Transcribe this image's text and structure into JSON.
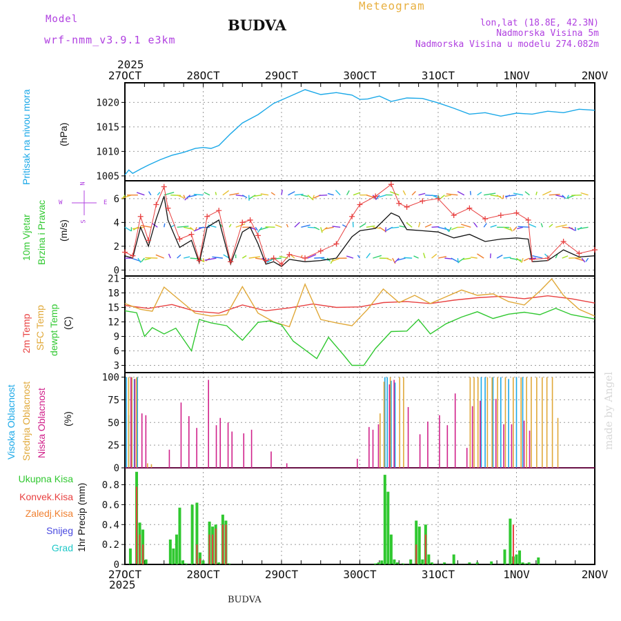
{
  "header": {
    "model_label": "Model",
    "model_name": "wrf-nmm_v3.9.1 e3km",
    "location": "BUDVA",
    "chart_title": "Meteogram",
    "coords": "lon,lat (18.8E, 42.3N)",
    "elevation": "Nadmorska Visina 5m",
    "model_elevation": "Nadmorska Visina u modelu 274.082m",
    "footer_location": "BUDVA",
    "credit": "made by Angel",
    "colors": {
      "purple": "#b040e0",
      "gold": "#e8b040",
      "black": "#111111"
    }
  },
  "time_axis": {
    "year": "2025",
    "labels": [
      "27OCT",
      "28OCT",
      "29OCT",
      "30OCT",
      "31OCT",
      "1NOV",
      "2NOV"
    ]
  },
  "chart_data": [
    {
      "id": "pressure",
      "type": "line",
      "title": "Pritisak na nivou mora",
      "ylabel": "(hPa)",
      "ylim": [
        1004,
        1024
      ],
      "yticks": [
        1005,
        1010,
        1015,
        1020
      ],
      "xlim": [
        0,
        6
      ],
      "color": "#1aa8e8",
      "x": [
        0,
        0.05,
        0.1,
        0.2,
        0.3,
        0.45,
        0.6,
        0.75,
        0.9,
        1.0,
        1.1,
        1.2,
        1.35,
        1.5,
        1.7,
        1.9,
        2.1,
        2.3,
        2.5,
        2.7,
        2.9,
        3.0,
        3.1,
        3.25,
        3.4,
        3.6,
        3.8,
        4.0,
        4.2,
        4.4,
        4.6,
        4.8,
        5.0,
        5.2,
        5.4,
        5.6,
        5.8,
        6.0
      ],
      "values": [
        1005.2,
        1006.2,
        1005.5,
        1006.4,
        1007.2,
        1008.3,
        1009.2,
        1009.8,
        1010.6,
        1010.8,
        1010.6,
        1011.2,
        1013.6,
        1015.8,
        1017.5,
        1019.8,
        1021.2,
        1022.6,
        1021.6,
        1022.0,
        1021.5,
        1020.6,
        1020.7,
        1021.3,
        1020.2,
        1020.9,
        1020.8,
        1019.9,
        1018.8,
        1017.6,
        1017.9,
        1017.2,
        1017.8,
        1017.6,
        1018.2,
        1017.9,
        1018.6,
        1018.4
      ]
    },
    {
      "id": "wind",
      "type": "line",
      "title": "10m Vjetar Brzina i Pravac",
      "ylabel": "(m/s)",
      "ylim": [
        -0.5,
        7.5
      ],
      "yticks": [
        0,
        2,
        4,
        6
      ],
      "xlim": [
        0,
        6
      ],
      "compass": {
        "west": "W",
        "east": "E",
        "north": "N",
        "south": "S"
      },
      "series": [
        {
          "name": "speed",
          "color": "#111111",
          "x": [
            0,
            0.1,
            0.2,
            0.3,
            0.4,
            0.5,
            0.55,
            0.7,
            0.85,
            0.95,
            1.05,
            1.2,
            1.35,
            1.5,
            1.6,
            1.7,
            1.8,
            1.9,
            2.0,
            2.1,
            2.3,
            2.5,
            2.7,
            2.9,
            3.0,
            3.2,
            3.4,
            3.5,
            3.6,
            3.8,
            4.0,
            4.2,
            4.4,
            4.6,
            4.8,
            5.0,
            5.15,
            5.2,
            5.4,
            5.6,
            5.8,
            6.0
          ],
          "values": [
            1.2,
            1.0,
            3.6,
            2.0,
            4.3,
            6.2,
            4.2,
            1.9,
            2.5,
            0.6,
            3.6,
            4.2,
            0.5,
            3.2,
            3.6,
            2.2,
            0.5,
            0.7,
            0.3,
            0.9,
            0.7,
            0.8,
            1.0,
            2.8,
            3.3,
            3.5,
            4.8,
            4.5,
            3.4,
            3.3,
            3.2,
            2.7,
            3.0,
            2.4,
            2.6,
            2.7,
            2.6,
            0.7,
            0.8,
            1.7,
            1.1,
            1.2
          ]
        },
        {
          "name": "gust",
          "color": "#e84040",
          "x": [
            0,
            0.1,
            0.2,
            0.3,
            0.4,
            0.5,
            0.55,
            0.7,
            0.85,
            0.95,
            1.05,
            1.2,
            1.35,
            1.5,
            1.6,
            1.7,
            1.8,
            1.9,
            2.0,
            2.1,
            2.3,
            2.5,
            2.7,
            2.9,
            3.0,
            3.2,
            3.4,
            3.5,
            3.6,
            3.8,
            4.0,
            4.2,
            4.4,
            4.6,
            4.8,
            5.0,
            5.15,
            5.2,
            5.4,
            5.6,
            5.8,
            6.0
          ],
          "values": [
            1.5,
            1.2,
            4.5,
            2.5,
            5.5,
            7.0,
            5.2,
            2.6,
            3.0,
            0.8,
            4.5,
            5.0,
            0.7,
            4.0,
            4.2,
            2.9,
            0.8,
            1.0,
            0.5,
            1.3,
            1.0,
            1.6,
            2.2,
            4.5,
            5.5,
            6.2,
            7.2,
            5.6,
            5.3,
            5.8,
            6.0,
            4.6,
            5.2,
            4.3,
            4.6,
            4.8,
            4.2,
            0.9,
            1.0,
            2.4,
            1.4,
            1.7
          ]
        }
      ],
      "arrow_rows": [
        1,
        3.6,
        6.3
      ]
    },
    {
      "id": "temperature",
      "type": "line",
      "title": "2m Temp / SFC Temp / dewpt Temp",
      "ylabel": "(C)",
      "ylim": [
        1.5,
        21.5
      ],
      "yticks": [
        3,
        6,
        9,
        12,
        15,
        18,
        21
      ],
      "xlim": [
        0,
        6
      ],
      "series": [
        {
          "name": "2m Temp",
          "color": "#e84040",
          "x": [
            0,
            0.3,
            0.6,
            0.9,
            1.2,
            1.5,
            1.8,
            2.1,
            2.4,
            2.7,
            3.0,
            3.3,
            3.6,
            3.9,
            4.2,
            4.5,
            4.8,
            5.1,
            5.4,
            5.7,
            6.0
          ],
          "values": [
            15.4,
            14.8,
            15.6,
            14.2,
            13.8,
            15.5,
            14.3,
            14.9,
            15.7,
            15.0,
            15.1,
            16.0,
            16.2,
            15.8,
            16.5,
            17.0,
            17.3,
            16.8,
            17.4,
            16.8,
            15.9
          ]
        },
        {
          "name": "SFC Temp",
          "color": "#e0a838",
          "x": [
            0,
            0.2,
            0.35,
            0.5,
            0.7,
            0.9,
            1.1,
            1.3,
            1.5,
            1.7,
            1.9,
            2.1,
            2.3,
            2.5,
            2.7,
            2.9,
            3.1,
            3.3,
            3.5,
            3.7,
            3.9,
            4.1,
            4.3,
            4.5,
            4.7,
            4.9,
            5.1,
            5.3,
            5.45,
            5.6,
            5.8,
            6.0
          ],
          "values": [
            15.8,
            14.6,
            14.2,
            19.2,
            16.5,
            13.8,
            13.2,
            13.5,
            19.3,
            13.8,
            12.0,
            11.0,
            19.8,
            12.5,
            11.8,
            11.2,
            14.6,
            18.8,
            16.0,
            17.5,
            15.8,
            17.2,
            18.6,
            17.5,
            17.8,
            16.2,
            15.5,
            18.4,
            20.9,
            17.5,
            14.6,
            13.2
          ]
        },
        {
          "name": "dewpt Temp",
          "color": "#30c830",
          "x": [
            0,
            0.15,
            0.25,
            0.35,
            0.5,
            0.65,
            0.85,
            0.95,
            1.1,
            1.3,
            1.5,
            1.7,
            1.85,
            2.0,
            2.15,
            2.3,
            2.45,
            2.6,
            2.8,
            2.9,
            3.05,
            3.2,
            3.4,
            3.6,
            3.75,
            3.9,
            4.1,
            4.3,
            4.5,
            4.7,
            4.9,
            5.1,
            5.3,
            5.5,
            5.7,
            6.0
          ],
          "values": [
            14.3,
            13.9,
            9.0,
            10.8,
            9.5,
            10.7,
            6.0,
            12.5,
            11.8,
            11.2,
            8.2,
            11.9,
            12.2,
            11.4,
            8.0,
            6.2,
            4.4,
            8.8,
            5.0,
            3.0,
            3.0,
            6.5,
            10.0,
            10.1,
            12.5,
            9.5,
            11.6,
            13.0,
            14.1,
            12.7,
            13.6,
            14.0,
            13.5,
            14.8,
            13.5,
            12.6
          ]
        }
      ]
    },
    {
      "id": "cloud",
      "type": "bar",
      "title": "Visoka / Srednja / Niska Oblacnost",
      "ylabel": "(%)",
      "ylim": [
        0,
        105
      ],
      "yticks": [
        0,
        25,
        50,
        75,
        100
      ],
      "xlim": [
        0,
        6
      ],
      "series": [
        {
          "name": "Visoka Oblacnost",
          "color": "#1aa8e8",
          "x": [
            0.02,
            0.05,
            0.09,
            0.12,
            0.16,
            3.32,
            3.35,
            3.4,
            3.45,
            4.55,
            4.6,
            4.7,
            4.8,
            4.9,
            5.0,
            5.08
          ],
          "values": [
            100,
            58,
            100,
            98,
            100,
            100,
            100,
            96,
            94,
            100,
            100,
            100,
            100,
            98,
            100,
            100
          ]
        },
        {
          "name": "Srednja Oblacnost",
          "color": "#e0a838",
          "x": [
            0.04,
            0.08,
            0.14,
            0.28,
            0.33,
            3.25,
            3.3,
            3.38,
            3.5,
            3.55,
            4.4,
            4.45,
            4.5,
            4.62,
            4.68,
            4.75,
            4.85,
            4.95,
            5.05,
            5.12,
            5.18,
            5.25,
            5.32,
            5.38,
            5.45,
            5.52
          ],
          "values": [
            100,
            100,
            100,
            5,
            4,
            60,
            95,
            100,
            100,
            100,
            100,
            100,
            100,
            100,
            100,
            100,
            100,
            100,
            100,
            100,
            100,
            100,
            100,
            100,
            100,
            55
          ]
        },
        {
          "name": "Niska Oblacnost",
          "color": "#d0208a",
          "x": [
            0.06,
            0.11,
            0.2,
            0.25,
            0.55,
            0.7,
            0.8,
            0.9,
            1.05,
            1.15,
            1.2,
            1.3,
            1.35,
            1.5,
            1.6,
            1.85,
            2.05,
            2.95,
            3.1,
            3.15,
            3.22,
            3.36,
            3.42,
            3.6,
            3.75,
            3.85,
            4.0,
            4.1,
            4.2,
            4.35,
            4.42,
            4.52,
            4.72,
            4.82,
            4.92,
            5.08,
            5.15
          ],
          "values": [
            100,
            98,
            60,
            58,
            20,
            72,
            57,
            44,
            97,
            47,
            55,
            50,
            40,
            38,
            42,
            18,
            5,
            10,
            45,
            42,
            48,
            92,
            97,
            67,
            37,
            51,
            58,
            47,
            82,
            22,
            68,
            74,
            76,
            48,
            48,
            52,
            41
          ]
        }
      ]
    },
    {
      "id": "precip",
      "type": "bar",
      "title": "Ukupna / Konvek / Zaledj Kisa, Snijeg, Grad",
      "ylabel": "1hr Precip (mm)",
      "ylim": [
        0,
        0.97
      ],
      "yticks": [
        0,
        0.2,
        0.4,
        0.6,
        0.8
      ],
      "xlim": [
        0,
        6
      ],
      "series": [
        {
          "name": "Ukupna Kisa",
          "color": "#30c830",
          "x": [
            0.07,
            0.15,
            0.19,
            0.23,
            0.27,
            0.58,
            0.62,
            0.66,
            0.7,
            0.74,
            0.78,
            0.86,
            0.92,
            0.96,
            1.0,
            1.08,
            1.12,
            1.16,
            1.2,
            1.25,
            1.29,
            1.33,
            3.2,
            3.24,
            3.28,
            3.32,
            3.36,
            3.4,
            3.44,
            3.48,
            3.55,
            3.65,
            3.72,
            3.76,
            3.8,
            3.84,
            3.88,
            3.92,
            4.08,
            4.2,
            4.4,
            4.5,
            4.68,
            4.85,
            4.92,
            4.96,
            5.0,
            5.04,
            5.08,
            5.12,
            5.16,
            5.28
          ],
          "values": [
            0.16,
            0.93,
            0.42,
            0.35,
            0.05,
            0.25,
            0.16,
            0.3,
            0.57,
            0.04,
            0.01,
            0.6,
            0.62,
            0.12,
            0.04,
            0.43,
            0.38,
            0.4,
            0.02,
            0.5,
            0.44,
            0.01,
            0.01,
            0.02,
            0.04,
            0.9,
            0.73,
            0.3,
            0.05,
            0.02,
            0.01,
            0.05,
            0.44,
            0.38,
            0.05,
            0.4,
            0.1,
            0.02,
            0.02,
            0.1,
            0.02,
            0.02,
            0.03,
            0.15,
            0.46,
            0.08,
            0.1,
            0.14,
            0.02,
            0.01,
            0.02,
            0.07
          ]
        },
        {
          "name": "Konvek.Kisa",
          "color": "#e84040",
          "x": [
            0.15,
            0.19,
            0.23,
            0.92,
            0.96,
            1.08,
            1.12,
            1.16,
            1.25,
            1.29,
            3.72,
            3.84,
            4.96
          ],
          "values": [
            0.78,
            0.3,
            0.2,
            0.2,
            0.06,
            0.3,
            0.3,
            0.36,
            0.4,
            0.4,
            0.2,
            0.3,
            0.4
          ]
        },
        {
          "name": "Zaledj.Kisa",
          "color": "#f08030",
          "x": [],
          "values": []
        },
        {
          "name": "Snijeg",
          "color": "#4848e0",
          "x": [],
          "values": []
        },
        {
          "name": "Grad",
          "color": "#20c8c8",
          "x": [],
          "values": []
        }
      ]
    }
  ],
  "labels": {
    "pressure_title": "Pritisak na nivou mora",
    "pressure_unit": "(hPa)",
    "wind_title_1": "10m Vjetar",
    "wind_title_2": "Brzina i Pravac",
    "wind_unit": "(m/s)",
    "temp_2m": "2m Temp",
    "temp_sfc": "SFC Temp",
    "temp_dewpt": "dewpt Temp",
    "temp_unit": "(C)",
    "cloud_high": "Visoka Oblacnost",
    "cloud_mid": "Srednja Oblacnost",
    "cloud_low": "Niska Oblacnost",
    "cloud_unit": "(%)",
    "precip_total": "Ukupna Kisa",
    "precip_conv": "Konvek.Kisa",
    "precip_frozen": "Zaledj.Kisa",
    "precip_snow": "Snijeg",
    "precip_hail": "Grad",
    "precip_unit": "1hr Precip (mm)"
  }
}
